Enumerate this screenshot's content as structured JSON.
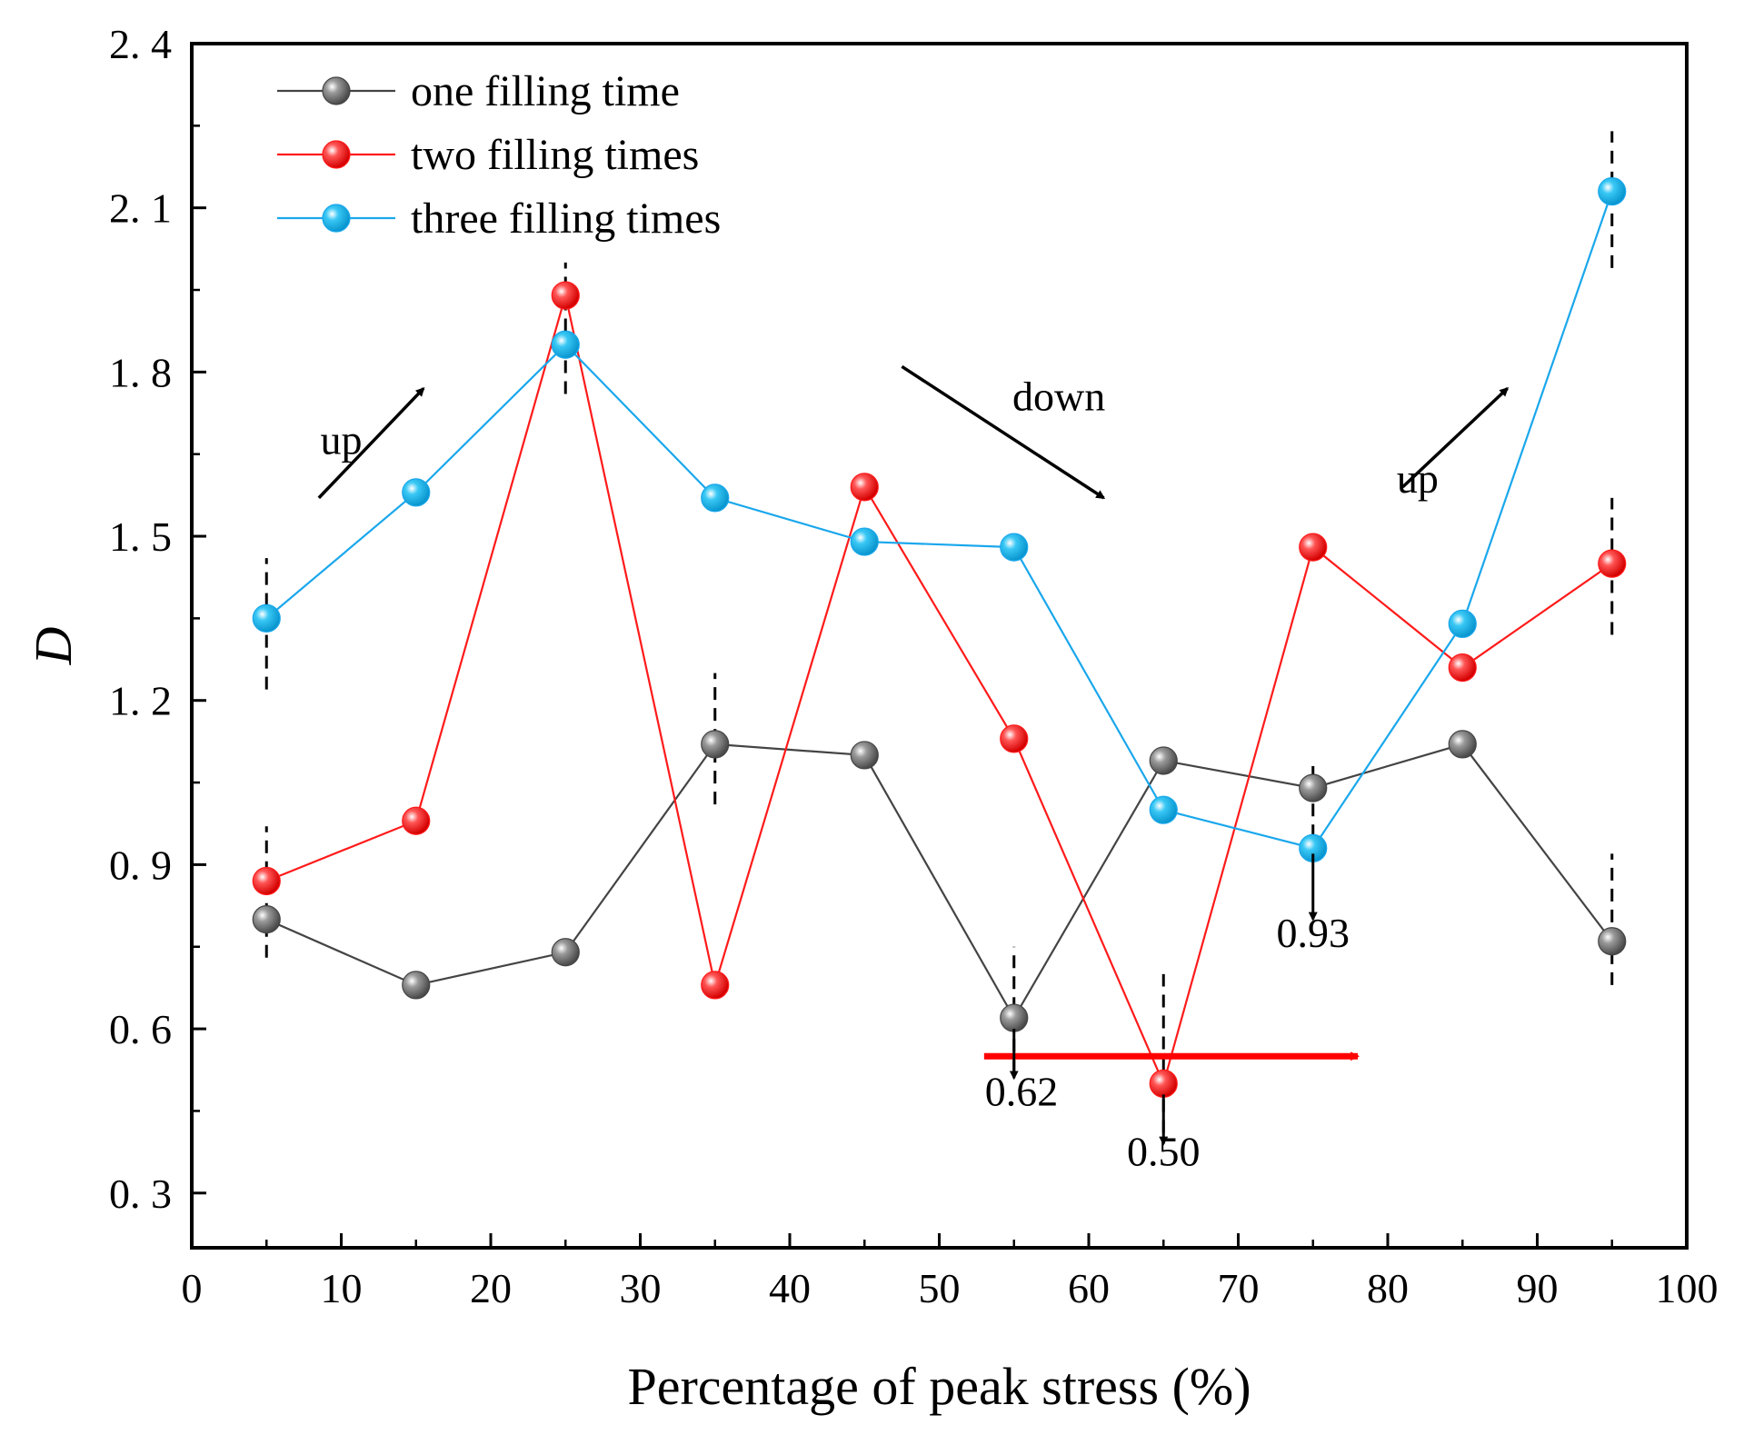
{
  "chart_data": {
    "type": "line",
    "title": "",
    "xlabel": "Percentage of peak stress (%)",
    "ylabel": "D",
    "xlim": [
      0,
      100
    ],
    "ylim": [
      0.2,
      2.4
    ],
    "xticks": [
      0,
      10,
      20,
      30,
      40,
      50,
      60,
      70,
      80,
      90,
      100
    ],
    "yticks": [
      0.3,
      0.6,
      0.9,
      1.2,
      1.5,
      1.8,
      2.1,
      2.4
    ],
    "ytick_labels": [
      "0. 3",
      "0. 6",
      "0. 9",
      "1. 2",
      "1. 5",
      "1. 8",
      "2. 1",
      "2. 4"
    ],
    "x": [
      5,
      15,
      25,
      35,
      45,
      55,
      65,
      75,
      85,
      95
    ],
    "series": [
      {
        "name": "one filling time",
        "color": "#444444",
        "marker_color": "#6e6e6e",
        "values": [
          0.8,
          0.68,
          0.74,
          1.12,
          1.1,
          0.62,
          1.09,
          1.04,
          1.12,
          0.76
        ]
      },
      {
        "name": "two filling times",
        "color": "#ff1a1a",
        "marker_color": "#ff2a2a",
        "values": [
          0.87,
          0.98,
          1.94,
          0.68,
          1.59,
          1.13,
          0.5,
          1.48,
          1.26,
          1.45
        ]
      },
      {
        "name": "three filling times",
        "color": "#1aa7ec",
        "marker_color": "#16b4ee",
        "values": [
          1.35,
          1.58,
          1.85,
          1.57,
          1.49,
          1.48,
          1.0,
          0.93,
          1.34,
          2.13
        ]
      }
    ],
    "legend": {
      "position": "top-left",
      "entries": [
        "one filling time",
        "two filling times",
        "three filling times"
      ]
    },
    "annotations": [
      {
        "text": "up",
        "x": 10,
        "y": 1.65
      },
      {
        "text": "down",
        "x": 58,
        "y": 1.73
      },
      {
        "text": "up",
        "x": 82,
        "y": 1.58
      },
      {
        "text": "0.62",
        "x": 55.5,
        "y": 0.46
      },
      {
        "text": "0.50",
        "x": 65,
        "y": 0.35
      },
      {
        "text": "0.93",
        "x": 75,
        "y": 0.75
      }
    ],
    "trend_arrows": [
      {
        "name": "up-arrow-left",
        "from": [
          8.5,
          1.57
        ],
        "to": [
          15.5,
          1.77
        ],
        "color": "#000000"
      },
      {
        "name": "down-arrow",
        "from": [
          47.5,
          1.81
        ],
        "to": [
          61,
          1.57
        ],
        "color": "#000000"
      },
      {
        "name": "up-arrow-right",
        "from": [
          81,
          1.59
        ],
        "to": [
          88,
          1.77
        ],
        "color": "#000000"
      },
      {
        "name": "red-horizontal-arrow",
        "from": [
          53,
          0.55
        ],
        "to": [
          78,
          0.55
        ],
        "color": "#ff0000"
      }
    ],
    "min_markers": [
      {
        "name": "arrow-0.62",
        "from": [
          55.0,
          0.6
        ],
        "to": [
          55.0,
          0.51
        ]
      },
      {
        "name": "arrow-0.50",
        "from": [
          65.0,
          0.48
        ],
        "to": [
          65.0,
          0.39
        ]
      },
      {
        "name": "arrow-0.93",
        "from": [
          75.0,
          0.92
        ],
        "to": [
          75.0,
          0.8
        ]
      }
    ],
    "dashed_guides": [
      {
        "x": 5,
        "y": [
          1.22,
          1.46
        ]
      },
      {
        "x": 5,
        "y": [
          0.73,
          0.97
        ]
      },
      {
        "x": 25,
        "y": [
          1.76,
          2.0
        ]
      },
      {
        "x": 35,
        "y": [
          1.01,
          1.25
        ]
      },
      {
        "x": 55,
        "y": [
          0.52,
          0.75
        ]
      },
      {
        "x": 65,
        "y": [
          0.41,
          0.7
        ]
      },
      {
        "x": 75,
        "y": [
          0.95,
          1.08
        ]
      },
      {
        "x": 95,
        "y": [
          1.99,
          2.24
        ]
      },
      {
        "x": 95,
        "y": [
          1.32,
          1.57
        ]
      },
      {
        "x": 95,
        "y": [
          0.68,
          0.92
        ]
      }
    ]
  }
}
